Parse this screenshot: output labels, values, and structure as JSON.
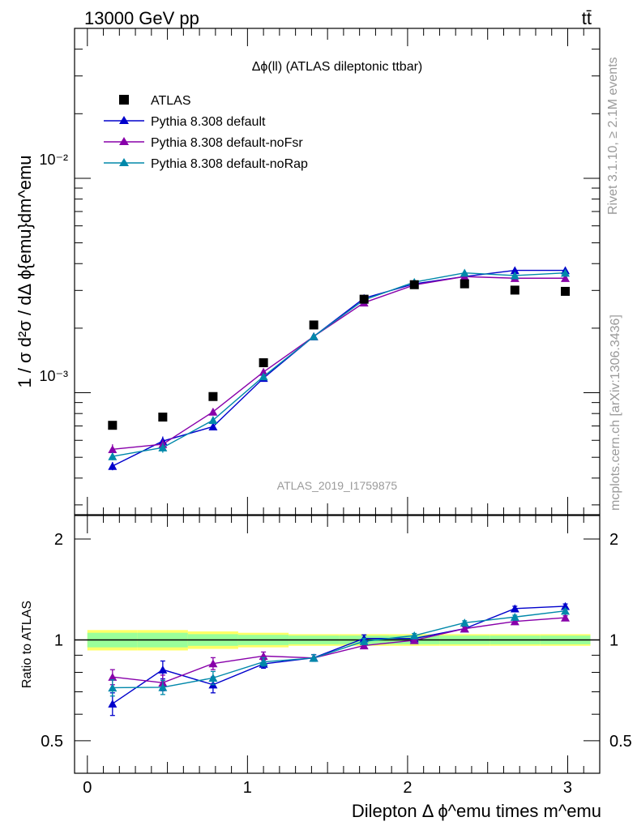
{
  "header": {
    "left": "13000 GeV pp",
    "right": "tt̄"
  },
  "side_labels": {
    "rivet": "Rivet 3.1.10, ≥ 2.1M events",
    "mcplots": "mcplots.cern.ch [arXiv:1306.3436]"
  },
  "main_panel": {
    "title": "Δϕ(ll) (ATLAS dileptonic ttbar)",
    "analysis_id": "ATLAS_2019_I1759875",
    "ylabel": "1 / σ  d²σ / dΔ ϕ{emu}dm^emu",
    "y_ticks": [
      "10⁻²",
      "10⁻³"
    ]
  },
  "ratio_panel": {
    "ylabel": "Ratio to ATLAS",
    "y_ticks": [
      "2",
      "1",
      "0.5"
    ]
  },
  "x_axis": {
    "label": "Dilepton Δ ϕ^emu times m^emu",
    "ticks": [
      "0",
      "1",
      "2",
      "3"
    ]
  },
  "legend": [
    {
      "label": "ATLAS"
    },
    {
      "label": "Pythia 8.308 default"
    },
    {
      "label": "Pythia 8.308 default-noFsr"
    },
    {
      "label": "Pythia 8.308 default-noRap"
    }
  ],
  "chart_data": {
    "type": "scatter",
    "x": [
      0.157,
      0.471,
      0.785,
      1.1,
      1.414,
      1.728,
      2.042,
      2.356,
      2.67,
      2.985
    ],
    "bin_edges": [
      0,
      0.314,
      0.628,
      0.942,
      1.257,
      1.571,
      1.885,
      2.199,
      2.513,
      2.827,
      3.142
    ],
    "xlim": [
      -0.08,
      3.2
    ],
    "ylim_main": [
      0.00027,
      0.05
    ],
    "ylim_ratio": [
      0.4,
      2.35
    ],
    "y_scale_main": "log",
    "y_scale_ratio": "log",
    "data": {
      "name": "ATLAS",
      "color": "#000000",
      "values": [
        0.000705,
        0.00077,
        0.00096,
        0.00138,
        0.00207,
        0.00273,
        0.00319,
        0.00322,
        0.00301,
        0.00297
      ]
    },
    "series": [
      {
        "name": "Pythia 8.308 default",
        "color": "#0000cc",
        "values": [
          0.000455,
          0.000595,
          0.000695,
          0.00117,
          0.00183,
          0.00276,
          0.00322,
          0.00348,
          0.00372,
          0.00372
        ],
        "errors": [
          2e-05,
          3e-05,
          2e-05,
          3e-05,
          3e-05,
          5e-05,
          4e-05,
          4e-05,
          5e-05,
          5e-05
        ],
        "ratio": [
          0.645,
          0.815,
          0.735,
          0.848,
          0.884,
          1.01,
          1.01,
          1.08,
          1.24,
          1.26
        ],
        "ratio_errors": [
          0.05,
          0.05,
          0.04,
          0.025,
          0.02,
          0.025,
          0.015,
          0.015,
          0.02,
          0.02
        ]
      },
      {
        "name": "Pythia 8.308 default-noFsr",
        "color": "#8800aa",
        "values": [
          0.000545,
          0.000575,
          0.000815,
          0.00125,
          0.00183,
          0.00263,
          0.00318,
          0.00348,
          0.00342,
          0.00342
        ],
        "errors": [
          3e-05,
          3e-05,
          3e-05,
          3e-05,
          3e-05,
          4e-05,
          4e-05,
          4e-05,
          4e-05,
          4e-05
        ],
        "ratio": [
          0.775,
          0.745,
          0.85,
          0.895,
          0.883,
          0.962,
          0.997,
          1.08,
          1.135,
          1.165
        ],
        "ratio_errors": [
          0.04,
          0.04,
          0.035,
          0.025,
          0.02,
          0.02,
          0.015,
          0.015,
          0.015,
          0.015
        ]
      },
      {
        "name": "Pythia 8.308 default-noRap",
        "color": "#0088aa",
        "values": [
          0.000505,
          0.000555,
          0.000745,
          0.00119,
          0.00183,
          0.00271,
          0.00328,
          0.00362,
          0.00352,
          0.00362
        ],
        "errors": [
          2e-05,
          3e-05,
          3e-05,
          3e-05,
          3e-05,
          4e-05,
          4e-05,
          4e-05,
          4e-05,
          4e-05
        ],
        "ratio": [
          0.72,
          0.722,
          0.77,
          0.86,
          0.883,
          0.99,
          1.03,
          1.125,
          1.17,
          1.22
        ],
        "ratio_errors": [
          0.04,
          0.035,
          0.035,
          0.025,
          0.02,
          0.02,
          0.015,
          0.015,
          0.015,
          0.015
        ]
      }
    ],
    "uncertainty_band": {
      "outer_green": [
        0.07,
        0.07,
        0.06,
        0.05,
        0.04,
        0.04,
        0.04,
        0.04,
        0.04,
        0.04
      ],
      "inner_yellow": [
        0.05,
        0.05,
        0.04,
        0.035,
        0.03,
        0.03,
        0.03,
        0.03,
        0.03,
        0.03
      ]
    },
    "colors": {
      "band_green": "#9aff9a",
      "band_yellow": "#ffff66"
    }
  }
}
